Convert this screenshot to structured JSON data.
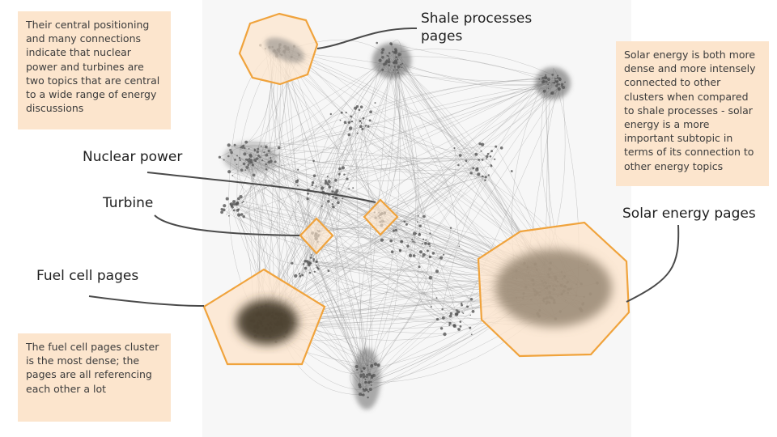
{
  "notes": {
    "central": "Their central positioning and many connections indicate that nuclear power and turbines are two topics that are central to a wide range of energy discussions",
    "solar": "Solar energy is both more dense and more intensely connected to other clusters when compared to shale processes - solar energy is a more important subtopic in terms of its connection to other energy topics",
    "fuel": "The fuel cell pages cluster is the most dense; the pages are all referencing each other a lot"
  },
  "labels": {
    "shale": "Shale processes pages",
    "nuclear": "Nuclear power",
    "turbine": "Turbine",
    "fuel_cell": "Fuel cell pages",
    "solar": "Solar energy pages"
  },
  "colors": {
    "highlight_fill": "#fce5cd",
    "highlight_stroke": "#f0a33c",
    "node": "#555555",
    "edge": "#9a9a9a",
    "leader": "#4a4a4a",
    "fuel_cluster": "#3e3325",
    "solar_cluster": "#8a7a66"
  }
}
